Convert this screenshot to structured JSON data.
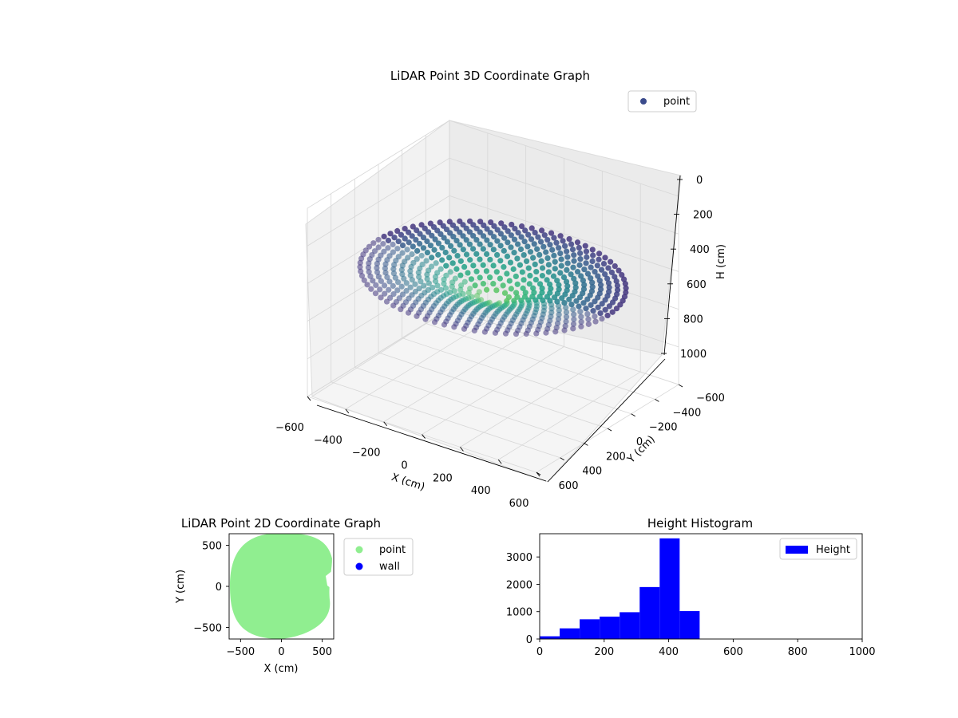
{
  "chart_data": [
    {
      "type": "scatter",
      "projection": "3d",
      "title": "LiDAR Point 3D Coordinate Graph",
      "xlabel": "X (cm)",
      "ylabel": "Y (cm)",
      "zlabel": "H (cm)",
      "xlim": [
        -600,
        600
      ],
      "ylim": [
        -600,
        600
      ],
      "zlim": [
        1000,
        0
      ],
      "xticks": [
        "−600",
        "−400",
        "−200",
        "0",
        "200",
        "400",
        "600"
      ],
      "yticks": [
        "−600",
        "−400",
        "−200",
        "0",
        "200",
        "400",
        "600"
      ],
      "zticks": [
        "0",
        "200",
        "400",
        "600",
        "800",
        "1000"
      ],
      "legend": {
        "position": "top-right",
        "entries": [
          "point"
        ]
      },
      "grid": true,
      "colormap": "viridis",
      "series": [
        {
          "name": "point",
          "color": "#3b4b8c",
          "shape": "bowl",
          "rim_radius": 600,
          "rim_height": 400,
          "bottom_height": 500
        }
      ]
    },
    {
      "type": "scatter",
      "title": "LiDAR Point 2D Coordinate Graph",
      "xlabel": "X (cm)",
      "ylabel": "Y (cm)",
      "xlim": [
        -640,
        640
      ],
      "ylim": [
        -640,
        640
      ],
      "xticks": [
        "−500",
        "0",
        "500"
      ],
      "yticks": [
        "−500",
        "0",
        "500"
      ],
      "legend": {
        "position": "outside-right",
        "entries": [
          "point",
          "wall"
        ]
      },
      "series": [
        {
          "name": "point",
          "color": "#90ee90",
          "footprint": "disc",
          "radius": 600
        },
        {
          "name": "wall",
          "color": "#0000ff",
          "points": []
        }
      ]
    },
    {
      "type": "bar",
      "subtype": "histogram",
      "title": "Height Histogram",
      "xlabel": "",
      "ylabel": "",
      "xlim": [
        0,
        1000
      ],
      "ylim": [
        0,
        3850
      ],
      "xticks": [
        "0",
        "200",
        "400",
        "600",
        "800",
        "1000"
      ],
      "yticks": [
        "0",
        "1000",
        "2000",
        "3000"
      ],
      "legend": {
        "position": "top-right",
        "entries": [
          "Height"
        ]
      },
      "series": [
        {
          "name": "Height",
          "color": "#0000ff",
          "bins": [
            [
              0,
              62
            ],
            [
              62,
              124
            ],
            [
              124,
              186
            ],
            [
              186,
              248
            ],
            [
              248,
              310
            ],
            [
              310,
              372
            ],
            [
              372,
              434
            ],
            [
              434,
              496
            ]
          ],
          "values": [
            100,
            390,
            720,
            820,
            980,
            1900,
            3680,
            1020
          ]
        }
      ]
    }
  ]
}
